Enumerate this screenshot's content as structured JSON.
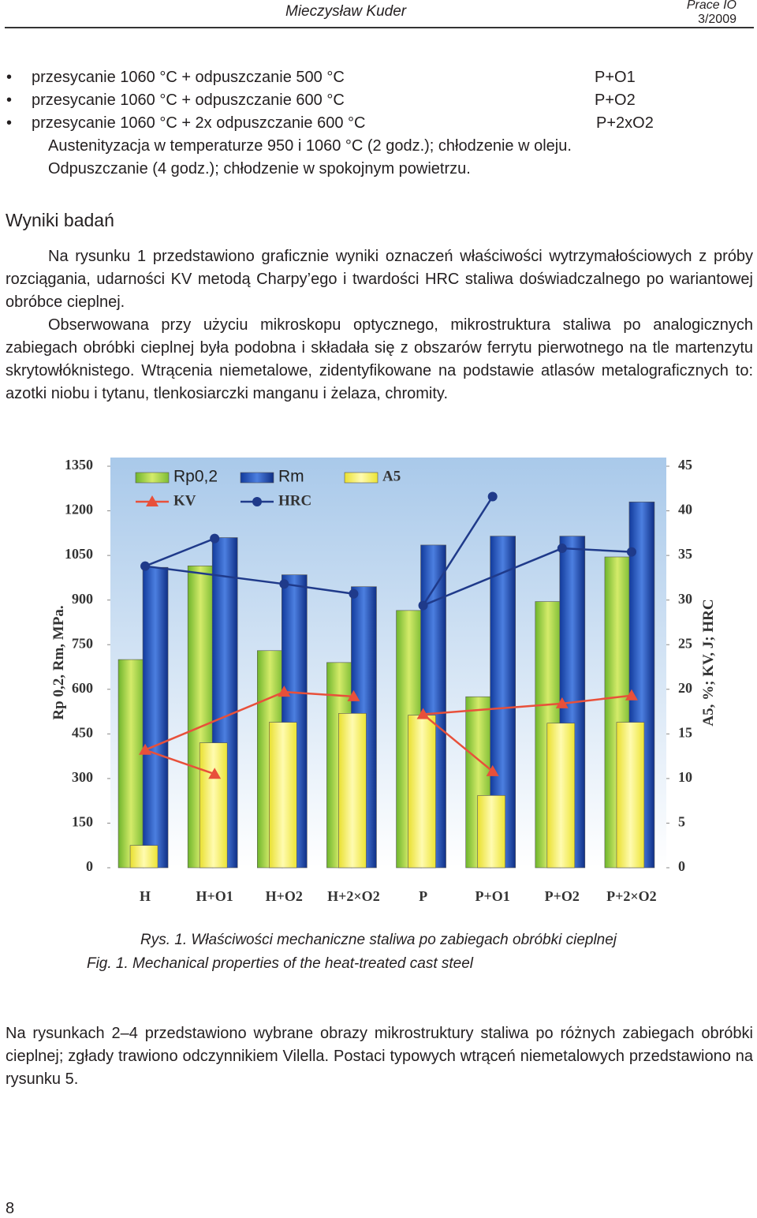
{
  "header": {
    "author": "Mieczysław Kuder",
    "journal": "Prace IO",
    "issue": "3/2009"
  },
  "bullets": [
    {
      "text": "przesycanie 1060 °C + odpuszczanie 500 °C",
      "code": "P+O1"
    },
    {
      "text": "przesycanie 1060 °C + odpuszczanie 600 °C",
      "code": "P+O2"
    },
    {
      "text": "przesycanie 1060 °C + 2x odpuszczanie 600 °C",
      "code": "P+2xO2"
    }
  ],
  "bullet_notes": [
    "Austenityzacja w temperaturze 950 i 1060 °C (2 godz.); chłodzenie w oleju.",
    "Odpuszczanie (4 godz.); chłodzenie w spokojnym powietrzu."
  ],
  "section_title": "Wyniki badań",
  "paragraphs": [
    "Na rysunku 1 przedstawiono graficznie wyniki oznaczeń właściwości wytrzymałościowych z próby rozciągania, udarności KV metodą Charpy’ego i twardości HRC staliwa doświadczalnego po wariantowej obróbce cieplnej.",
    "Obserwowana przy użyciu mikroskopu optycznego, mikrostruktura staliwa po analogicznych zabiegach obróbki cieplnej była podobna i składała się z obszarów ferrytu pierwotnego na tle martenzytu skrytowłóknistego. Wtrącenia niemetalowe, zidentyfikowane na podstawie atlasów metalograficznych to: azotki niobu i tytanu, tlenkosiarczki manganu i żelaza, chromity."
  ],
  "chart_data": {
    "type": "bar-line",
    "y_label": "Rp 0,2, Rm, MPa.",
    "y2_label": "A5, %; KV, J; HRC",
    "categories": [
      "H",
      "H+O1",
      "H+O2",
      "H+2×O2",
      "P",
      "P+O1",
      "P+O2",
      "P+2×O2"
    ],
    "series": [
      {
        "name": "Rp0,2",
        "kind": "bar",
        "color": "#8cc63f",
        "values": [
          700,
          1015,
          730,
          690,
          865,
          575,
          895,
          1045
        ]
      },
      {
        "name": "Rm",
        "kind": "bar",
        "color": "#1f4fb5",
        "values": [
          1010,
          1110,
          985,
          945,
          1085,
          1115,
          1115,
          1230
        ]
      },
      {
        "name": "A5",
        "kind": "bar",
        "color": "#f2ea3a",
        "axis": "y2",
        "values": [
          2.5,
          14,
          16.3,
          17.3,
          17.1,
          8.1,
          16.2,
          16.3
        ]
      },
      {
        "name": "KV",
        "kind": "line",
        "color": "#e8503a",
        "marker": "triangle",
        "axis": "y2",
        "values": [
          13.2,
          10.5,
          19.7,
          19.2,
          17.2,
          10.8,
          18.4,
          19.3
        ]
      },
      {
        "name": "HRC",
        "kind": "line",
        "color": "#1f3a8a",
        "marker": "circle",
        "axis": "y2",
        "values": [
          33.8,
          36.9,
          31.8,
          30.7,
          29.4,
          41.6,
          35.8,
          35.4
        ]
      }
    ],
    "ylim": [
      0,
      1350
    ],
    "yticks": [
      0,
      150,
      300,
      450,
      600,
      750,
      900,
      1050,
      1200,
      1350
    ],
    "y2lim": [
      0,
      45
    ],
    "y2ticks": [
      0,
      5,
      10,
      15,
      20,
      25,
      30,
      35,
      40,
      45
    ],
    "grid": false
  },
  "captions": [
    "Rys. 1. Właściwości mechaniczne staliwa po zabiegach obróbki cieplnej",
    "Fig. 1. Mechanical properties of the heat-treated cast steel"
  ],
  "paragraphs_after": [
    "Na rysunkach 2–4 przedstawiono wybrane obrazy mikrostruktury staliwa po różnych zabiegach obróbki cieplnej; zgłady trawiono odczynnikiem Vilella. Postaci typowych wtrąceń niemetalowych przedstawiono na rysunku 5."
  ],
  "page_number": "8"
}
